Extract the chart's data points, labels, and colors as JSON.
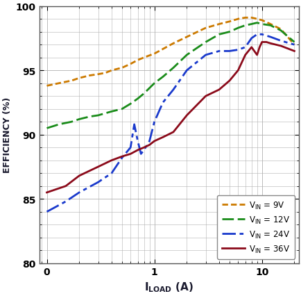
{
  "ylabel": "EFFICIENCY (%)",
  "ylim": [
    80,
    100
  ],
  "background_color": "#ffffff",
  "grid_color": "#b0b0b0",
  "colors": {
    "9V": "#cc7a00",
    "12V": "#1a8c1a",
    "24V": "#1a3acc",
    "36V": "#8b0a1a"
  },
  "vin9_x": [
    0.1,
    0.13,
    0.17,
    0.2,
    0.25,
    0.3,
    0.35,
    0.4,
    0.5,
    0.6,
    0.7,
    0.8,
    1.0,
    1.5,
    2.0,
    3.0,
    4.0,
    5.0,
    6.0,
    7.0,
    8.0,
    9.0,
    10.0,
    12.0,
    15.0,
    20.0
  ],
  "vin9_y": [
    93.8,
    94.0,
    94.2,
    94.4,
    94.6,
    94.7,
    94.8,
    95.0,
    95.2,
    95.5,
    95.8,
    96.0,
    96.3,
    97.1,
    97.6,
    98.3,
    98.6,
    98.8,
    99.0,
    99.1,
    99.1,
    99.0,
    98.9,
    98.6,
    98.2,
    97.0
  ],
  "vin12_x": [
    0.1,
    0.13,
    0.17,
    0.2,
    0.25,
    0.3,
    0.4,
    0.5,
    0.6,
    0.7,
    0.8,
    1.0,
    1.2,
    1.5,
    2.0,
    3.0,
    4.0,
    5.0,
    6.0,
    7.0,
    8.0,
    9.0,
    10.0,
    12.0,
    15.0,
    20.0
  ],
  "vin12_y": [
    90.5,
    90.8,
    91.0,
    91.2,
    91.4,
    91.5,
    91.8,
    92.0,
    92.4,
    92.8,
    93.2,
    94.0,
    94.5,
    95.2,
    96.2,
    97.2,
    97.8,
    98.0,
    98.3,
    98.5,
    98.6,
    98.7,
    98.6,
    98.5,
    98.1,
    97.2
  ],
  "vin24_x": [
    0.1,
    0.15,
    0.2,
    0.3,
    0.4,
    0.5,
    0.6,
    0.65,
    0.7,
    0.75,
    0.8,
    0.9,
    1.0,
    1.2,
    1.5,
    2.0,
    3.0,
    4.0,
    5.0,
    6.0,
    7.0,
    8.0,
    9.0,
    10.0,
    12.0,
    15.0,
    20.0
  ],
  "vin24_y": [
    84.0,
    84.8,
    85.5,
    86.3,
    87.0,
    88.2,
    89.0,
    90.8,
    89.5,
    88.5,
    88.8,
    89.5,
    91.0,
    92.5,
    93.5,
    95.0,
    96.2,
    96.5,
    96.5,
    96.6,
    96.8,
    97.5,
    97.8,
    97.8,
    97.6,
    97.3,
    97.0
  ],
  "vin36_x": [
    0.1,
    0.15,
    0.2,
    0.3,
    0.4,
    0.5,
    0.6,
    0.7,
    0.8,
    0.9,
    1.0,
    1.2,
    1.5,
    2.0,
    3.0,
    4.0,
    5.0,
    6.0,
    7.0,
    8.0,
    9.0,
    9.5,
    10.0,
    11.0,
    12.0,
    15.0,
    20.0
  ],
  "vin36_y": [
    85.5,
    86.0,
    86.8,
    87.5,
    88.0,
    88.3,
    88.5,
    88.8,
    89.0,
    89.2,
    89.5,
    89.8,
    90.2,
    91.5,
    93.0,
    93.5,
    94.2,
    95.0,
    96.2,
    96.8,
    96.2,
    96.8,
    97.2,
    97.2,
    97.1,
    96.9,
    96.5
  ],
  "xticks": [
    0.1,
    1,
    10
  ],
  "xticklabels": [
    "0",
    "1",
    "10"
  ],
  "yticks": [
    80,
    85,
    90,
    95,
    100
  ],
  "legend": [
    {
      "label": "V_IN = 9V",
      "color": "#cc7a00",
      "ls": "9V"
    },
    {
      "label": "V_IN = 12V",
      "color": "#1a8c1a",
      "ls": "12V"
    },
    {
      "label": "V_IN = 24V",
      "color": "#1a3acc",
      "ls": "24V"
    },
    {
      "label": "V_IN = 36V",
      "color": "#8b0a1a",
      "ls": "36V"
    }
  ]
}
